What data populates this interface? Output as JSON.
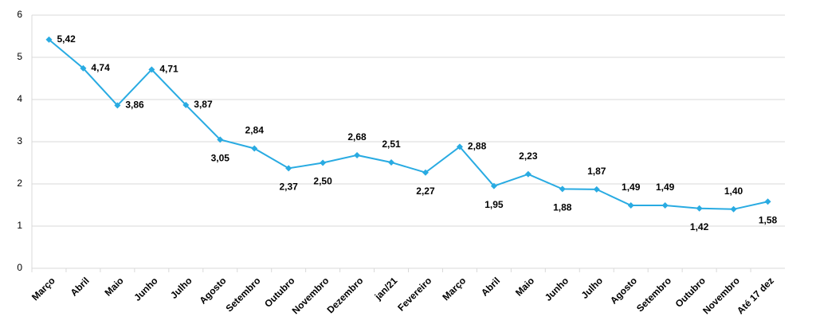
{
  "chart_data": {
    "type": "line",
    "categories": [
      "Março",
      "Abril",
      "Maio",
      "Junho",
      "Julho",
      "Agosto",
      "Setembro",
      "Outubro",
      "Novembro",
      "Dezembro",
      "jan/21",
      "Fevereiro",
      "Março",
      "Abril",
      "Maio",
      "Junho",
      "Julho",
      "Agosto",
      "Setembro",
      "Outubro",
      "Novembro",
      "Até 17 dez"
    ],
    "values": [
      5.42,
      4.74,
      3.86,
      4.71,
      3.87,
      3.05,
      2.84,
      2.37,
      2.5,
      2.68,
      2.51,
      2.27,
      2.88,
      1.95,
      2.23,
      1.88,
      1.87,
      1.49,
      1.49,
      1.42,
      1.4,
      1.58
    ],
    "value_labels": [
      "5,42",
      "4,74",
      "3,86",
      "4,71",
      "3,87",
      "3,05",
      "2,84",
      "2,37",
      "2,50",
      "2,68",
      "2,51",
      "2,27",
      "2,88",
      "1,95",
      "2,23",
      "1,88",
      "1,87",
      "1,49",
      "1,49",
      "1,42",
      "1,40",
      "1,58"
    ],
    "color": "#29abe2",
    "ylim": [
      0,
      6
    ],
    "yticks": [
      0,
      1,
      2,
      3,
      4,
      5,
      6
    ],
    "grid": true
  }
}
